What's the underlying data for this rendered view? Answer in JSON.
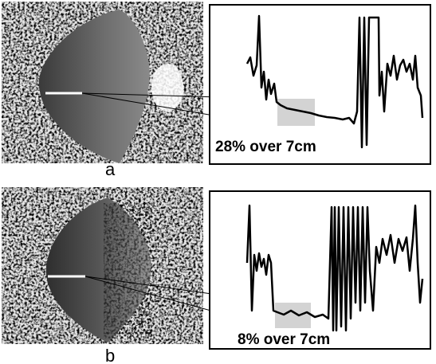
{
  "panels": [
    {
      "label": "a",
      "annotation": "28% over 7cm"
    },
    {
      "label": "b",
      "annotation": "8% over 7cm"
    }
  ]
}
